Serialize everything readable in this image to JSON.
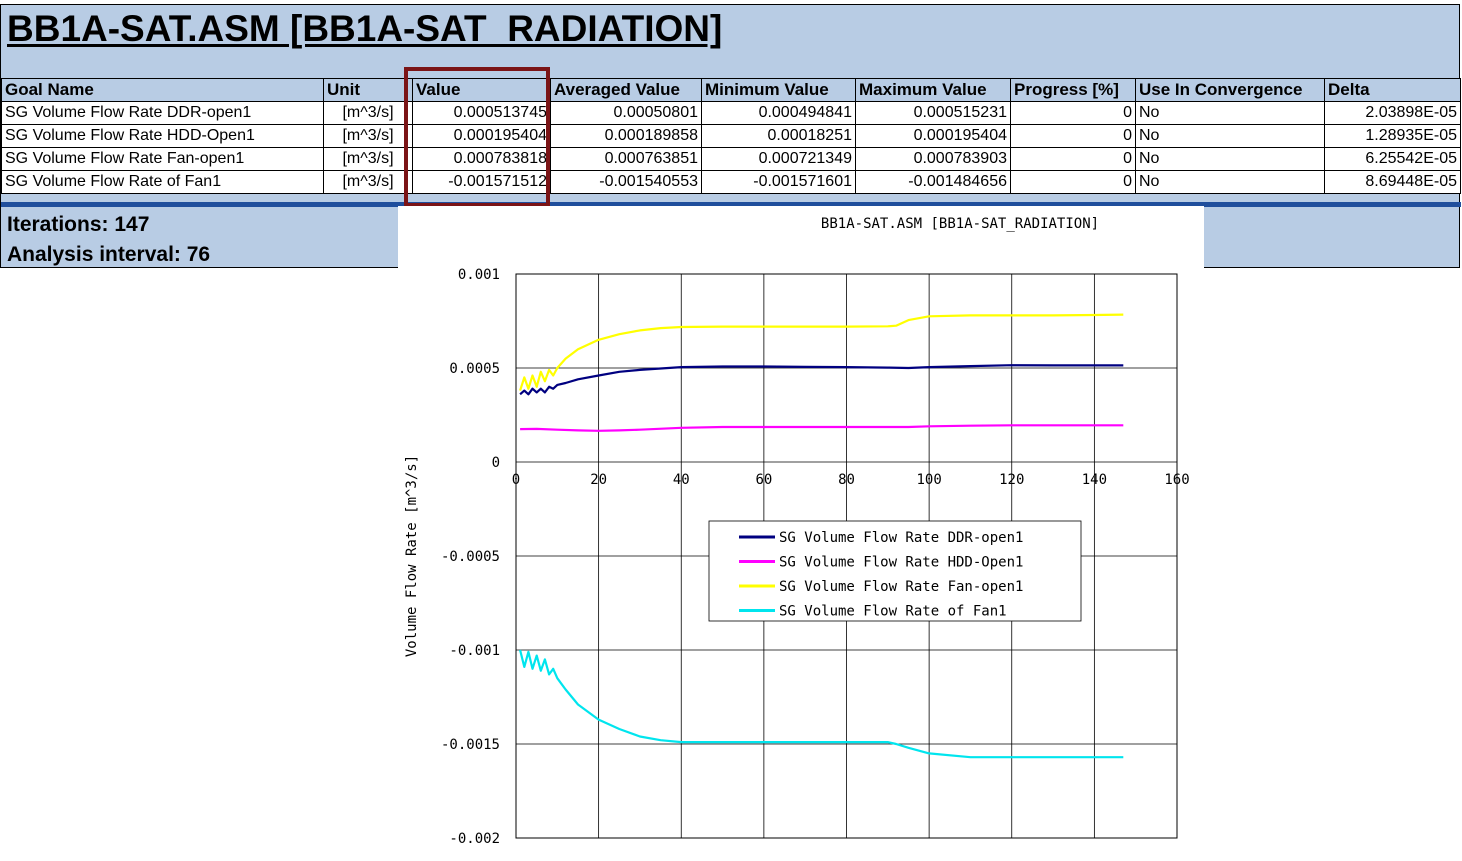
{
  "header": {
    "title": "BB1A-SAT.ASM [BB1A-SAT_RADIATION]"
  },
  "table": {
    "columns": [
      "Goal Name",
      "Unit",
      "Value",
      "Averaged Value",
      "Minimum Value",
      "Maximum Value",
      "Progress [%]",
      "Use In Convergence",
      "Delta"
    ],
    "rows": [
      [
        "SG Volume Flow Rate DDR-open1",
        "[m^3/s]",
        "0.000513745",
        "0.00050801",
        "0.000494841",
        "0.000515231",
        "0",
        "No",
        "2.03898E-05"
      ],
      [
        "SG Volume Flow Rate HDD-Open1",
        "[m^3/s]",
        "0.000195404",
        "0.000189858",
        "0.00018251",
        "0.000195404",
        "0",
        "No",
        "1.28935E-05"
      ],
      [
        "SG Volume Flow Rate Fan-open1",
        "[m^3/s]",
        "0.000783818",
        "0.000763851",
        "0.000721349",
        "0.000783903",
        "0",
        "No",
        "6.25542E-05"
      ],
      [
        "SG Volume Flow Rate of Fan1",
        "[m^3/s]",
        "-0.001571512",
        "-0.001540553",
        "-0.001571601",
        "-0.001484656",
        "0",
        "No",
        "8.69448E-05"
      ]
    ]
  },
  "stats": {
    "iterations": "Iterations:  147",
    "analysis_interval": "Analysis interval: 76"
  },
  "colors": {
    "panel": "#b8cce4",
    "highlight": "#7b1416",
    "ddr": "#000080",
    "hdd": "#ff00ff",
    "fan_open": "#ffff00",
    "fan1": "#00e5ee"
  },
  "chart_data": {
    "type": "line",
    "title": "BB1A-SAT.ASM [BB1A-SAT_RADIATION]",
    "xlabel": "",
    "ylabel": "Volume Flow Rate  [m^3/s]",
    "xlim": [
      0,
      160
    ],
    "ylim": [
      -0.002,
      0.001
    ],
    "xticks": [
      "0",
      "20",
      "40",
      "60",
      "80",
      "100",
      "120",
      "140",
      "160"
    ],
    "yticks": [
      "0.001",
      "0.0005",
      "0",
      "-0.0005",
      "-0.001",
      "-0.0015",
      "-0.002"
    ],
    "grid": true,
    "legend": "center",
    "series": [
      {
        "name": "SG Volume Flow Rate DDR-open1",
        "color": "#000080",
        "x": [
          1,
          2,
          3,
          4,
          5,
          6,
          7,
          8,
          9,
          10,
          12,
          15,
          20,
          25,
          30,
          40,
          50,
          60,
          70,
          80,
          90,
          95,
          100,
          110,
          120,
          130,
          140,
          147
        ],
        "y": [
          0.00036,
          0.00038,
          0.00036,
          0.00039,
          0.00037,
          0.00039,
          0.00037,
          0.0004,
          0.00039,
          0.00041,
          0.00042,
          0.00044,
          0.00046,
          0.00048,
          0.00049,
          0.000505,
          0.000508,
          0.000508,
          0.000506,
          0.000505,
          0.000502,
          0.0005,
          0.000505,
          0.00051,
          0.000515,
          0.000514,
          0.000514,
          0.000514
        ]
      },
      {
        "name": "SG Volume Flow Rate HDD-Open1",
        "color": "#ff00ff",
        "x": [
          1,
          5,
          10,
          15,
          20,
          25,
          30,
          40,
          50,
          60,
          80,
          90,
          95,
          100,
          110,
          120,
          130,
          140,
          147
        ],
        "y": [
          0.000175,
          0.000176,
          0.000172,
          0.000168,
          0.000166,
          0.000168,
          0.000172,
          0.000182,
          0.000186,
          0.000186,
          0.000186,
          0.000186,
          0.000186,
          0.00019,
          0.000193,
          0.000195,
          0.000195,
          0.000195,
          0.000195
        ]
      },
      {
        "name": "SG Volume Flow Rate Fan-open1",
        "color": "#ffff00",
        "x": [
          1,
          2,
          3,
          4,
          5,
          6,
          7,
          8,
          9,
          10,
          12,
          15,
          20,
          25,
          30,
          35,
          40,
          50,
          60,
          70,
          80,
          90,
          92,
          95,
          100,
          110,
          120,
          130,
          140,
          147
        ],
        "y": [
          0.00038,
          0.00045,
          0.00039,
          0.00046,
          0.0004,
          0.00048,
          0.00043,
          0.00049,
          0.00046,
          0.0005,
          0.00055,
          0.0006,
          0.00065,
          0.00068,
          0.0007,
          0.000712,
          0.000718,
          0.00072,
          0.00072,
          0.00072,
          0.00072,
          0.000722,
          0.000725,
          0.000755,
          0.000775,
          0.00078,
          0.00078,
          0.00078,
          0.000782,
          0.000784
        ]
      },
      {
        "name": "SG Volume Flow Rate of Fan1",
        "color": "#00e5ee",
        "x": [
          1,
          2,
          3,
          4,
          5,
          6,
          7,
          8,
          9,
          10,
          11,
          12,
          15,
          20,
          25,
          30,
          35,
          40,
          50,
          60,
          70,
          80,
          90,
          92,
          95,
          100,
          110,
          120,
          130,
          140,
          147
        ],
        "y": [
          -0.001,
          -0.00109,
          -0.00101,
          -0.0011,
          -0.00103,
          -0.00111,
          -0.00105,
          -0.00113,
          -0.0011,
          -0.00115,
          -0.00118,
          -0.00121,
          -0.00129,
          -0.00137,
          -0.00142,
          -0.00146,
          -0.00148,
          -0.00149,
          -0.00149,
          -0.00149,
          -0.00149,
          -0.00149,
          -0.00149,
          -0.0015,
          -0.00152,
          -0.00155,
          -0.00157,
          -0.00157,
          -0.00157,
          -0.00157,
          -0.00157
        ]
      }
    ]
  }
}
